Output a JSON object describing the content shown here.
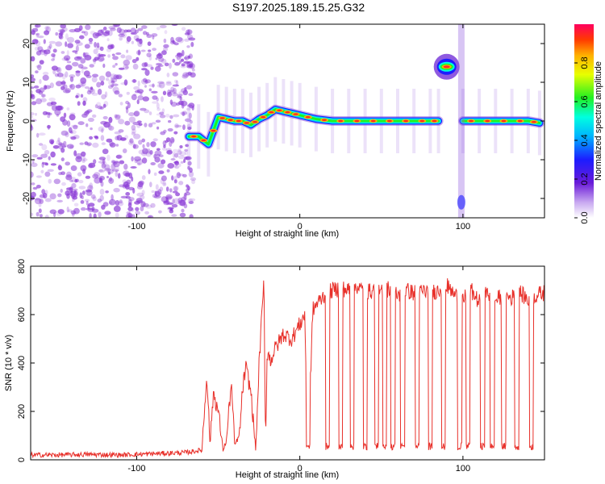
{
  "figure_title": "S197.2025.189.15.25.G32",
  "colors": {
    "snr_line": "#e8302a",
    "scatter_noise": "#8a3ad6",
    "background": "#ffffff"
  },
  "chart_data": [
    {
      "type": "heatmap",
      "title": "S197.2025.189.15.25.G32",
      "xlabel": "Height of straight line (km)",
      "ylabel": "Frequency (Hz)",
      "xlim": [
        -165,
        150
      ],
      "ylim": [
        -25,
        25
      ],
      "x_ticks": [
        "-100",
        "0",
        "100"
      ],
      "x_tick_values": [
        -100,
        0,
        100
      ],
      "y_ticks": [
        "-20",
        "-10",
        "0",
        "10",
        "20"
      ],
      "y_tick_values": [
        -20,
        -10,
        0,
        10,
        20
      ],
      "colorbar": {
        "label": "Normalized spectral amplitude",
        "ticks": [
          "0.0",
          "0.2",
          "0.4",
          "0.6",
          "0.8"
        ],
        "tick_values": [
          0.0,
          0.2,
          0.4,
          0.6,
          0.8
        ],
        "range": [
          0,
          1
        ],
        "colormap": "rainbow"
      },
      "noise_region_x": [
        -165,
        -65
      ],
      "ridge": {
        "x": [
          -68,
          -62,
          -56,
          -50,
          -45,
          -40,
          -35,
          -30,
          -25,
          -20,
          -15,
          -10,
          -5,
          0,
          10,
          20,
          30,
          40,
          50,
          60,
          70,
          80,
          85
        ],
        "y": [
          -4,
          -4,
          -6,
          1,
          0.5,
          0,
          0,
          -1,
          0.5,
          1.5,
          3,
          2.5,
          2,
          1.5,
          0.5,
          0,
          0,
          0,
          0,
          0,
          0,
          0,
          0
        ]
      },
      "ridge2": {
        "x": [
          100,
          110,
          120,
          130,
          140,
          147
        ],
        "y": [
          0,
          0,
          0,
          0,
          0,
          -0.5
        ]
      },
      "spike_cluster": {
        "x": 90,
        "y": 14
      },
      "grid": false
    },
    {
      "type": "line",
      "xlabel": "Height of straight line (km)",
      "ylabel": "SNR (10 * v/v)",
      "xlim": [
        -165,
        150
      ],
      "ylim": [
        0,
        800
      ],
      "x_ticks": [
        "-100",
        "0",
        "100"
      ],
      "x_tick_values": [
        -100,
        0,
        100
      ],
      "y_ticks": [
        "0",
        "200",
        "400",
        "600",
        "800"
      ],
      "y_tick_values": [
        0,
        200,
        400,
        600,
        800
      ],
      "grid": false,
      "series": [
        {
          "x": [
            -165,
            -150,
            -130,
            -110,
            -90,
            -70,
            -60,
            -57,
            -55,
            -53,
            -50,
            -47,
            -45,
            -42,
            -40,
            -37,
            -35,
            -33,
            -30,
            -27,
            -25,
            -22,
            -21,
            -20,
            -18,
            -15,
            -10,
            -5,
            0,
            3,
            5,
            8,
            10,
            15,
            20,
            25,
            30,
            35,
            40,
            45,
            50,
            55,
            60,
            65,
            70,
            75,
            80,
            85,
            90,
            95,
            100,
            105,
            110,
            115,
            120,
            125,
            130,
            135,
            140,
            145,
            150
          ],
          "y": [
            20,
            20,
            22,
            20,
            25,
            30,
            40,
            360,
            60,
            280,
            200,
            40,
            80,
            320,
            60,
            100,
            300,
            380,
            280,
            40,
            390,
            740,
            60,
            450,
            410,
            460,
            520,
            500,
            560,
            600,
            50,
            620,
            640,
            680,
            700,
            710,
            700,
            720,
            690,
            700,
            690,
            710,
            680,
            700,
            690,
            700,
            690,
            700,
            720,
            680,
            660,
            700,
            650,
            690,
            660,
            680,
            670,
            690,
            660,
            680,
            690
          ]
        }
      ],
      "dropouts_x": [
        5,
        17,
        25,
        32,
        40,
        47,
        52,
        57,
        63,
        72,
        80,
        88,
        98,
        103,
        112,
        118,
        125,
        133,
        142
      ]
    }
  ]
}
